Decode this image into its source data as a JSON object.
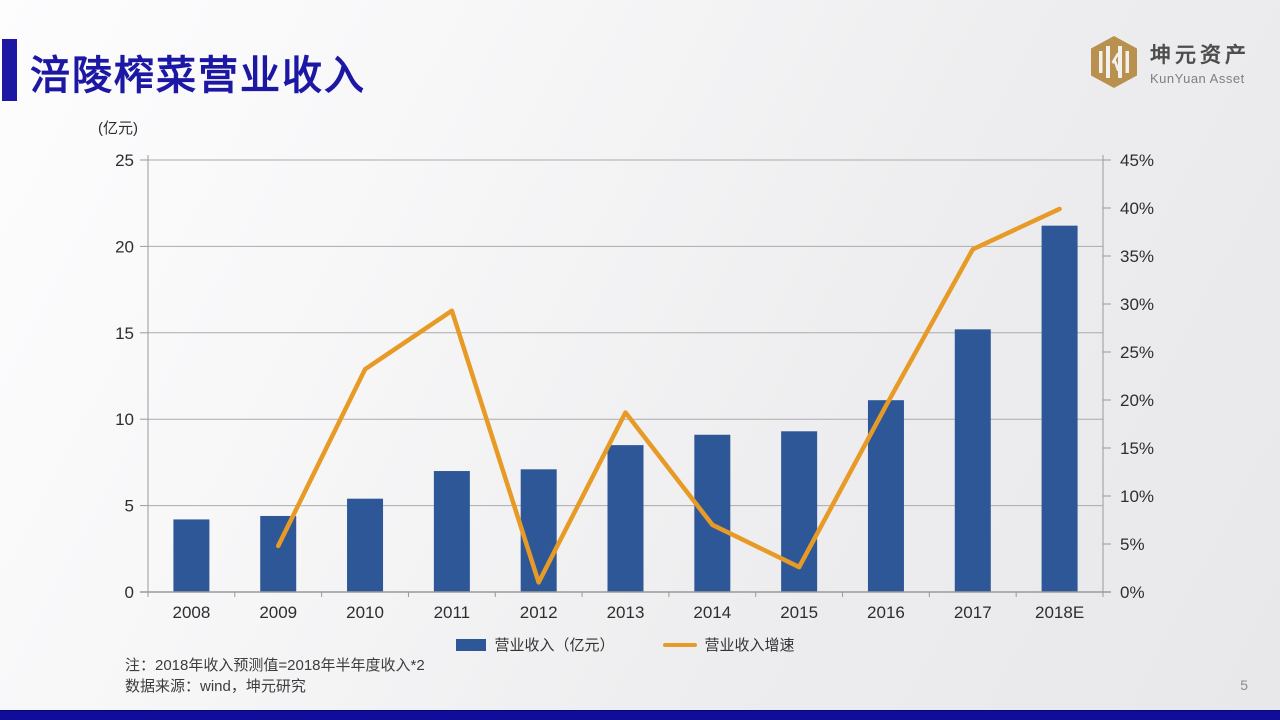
{
  "slide": {
    "title": "涪陵榨菜营业收入",
    "page_number": "5"
  },
  "logo": {
    "name_cn": "坤元资产",
    "name_en": "KunYuan Asset",
    "color": "#b8914f"
  },
  "notes": {
    "line1": "注：2018年收入预测值=2018年半年度收入*2",
    "line2": "数据来源：wind，坤元研究"
  },
  "chart_data": {
    "type": "bar",
    "subtype": "bar+line combo, secondary percent axis",
    "categories": [
      "2008",
      "2009",
      "2010",
      "2011",
      "2012",
      "2013",
      "2014",
      "2015",
      "2016",
      "2017",
      "2018E"
    ],
    "series": [
      {
        "name": "营业收入（亿元）",
        "type": "bar",
        "axis": "left",
        "color": "#2e5797",
        "values": [
          4.2,
          4.4,
          5.4,
          7.0,
          7.1,
          8.5,
          9.1,
          9.3,
          11.1,
          15.2,
          21.2
        ]
      },
      {
        "name": "营业收入增速",
        "type": "line",
        "axis": "right",
        "color": "#e79b26",
        "values": [
          null,
          4.8,
          23.2,
          29.3,
          1.0,
          18.7,
          7.0,
          2.6,
          19.4,
          35.7,
          39.9
        ]
      }
    ],
    "left_axis": {
      "label": "(亿元)",
      "min": 0,
      "max": 25,
      "step": 5,
      "ticks": [
        "0",
        "5",
        "10",
        "15",
        "20",
        "25"
      ]
    },
    "right_axis": {
      "label": "",
      "min": 0,
      "max": 45,
      "step": 5,
      "ticks": [
        "0%",
        "5%",
        "10%",
        "15%",
        "20%",
        "25%",
        "30%",
        "35%",
        "40%",
        "45%"
      ]
    },
    "title": "涪陵榨菜营业收入",
    "xlabel": "",
    "ylabel": "(亿元)",
    "grid": true,
    "legend_position": "bottom",
    "colors": {
      "grid": "#ababab",
      "axis": "#9a9a9a",
      "tick_text": "#2e2e2e"
    }
  }
}
